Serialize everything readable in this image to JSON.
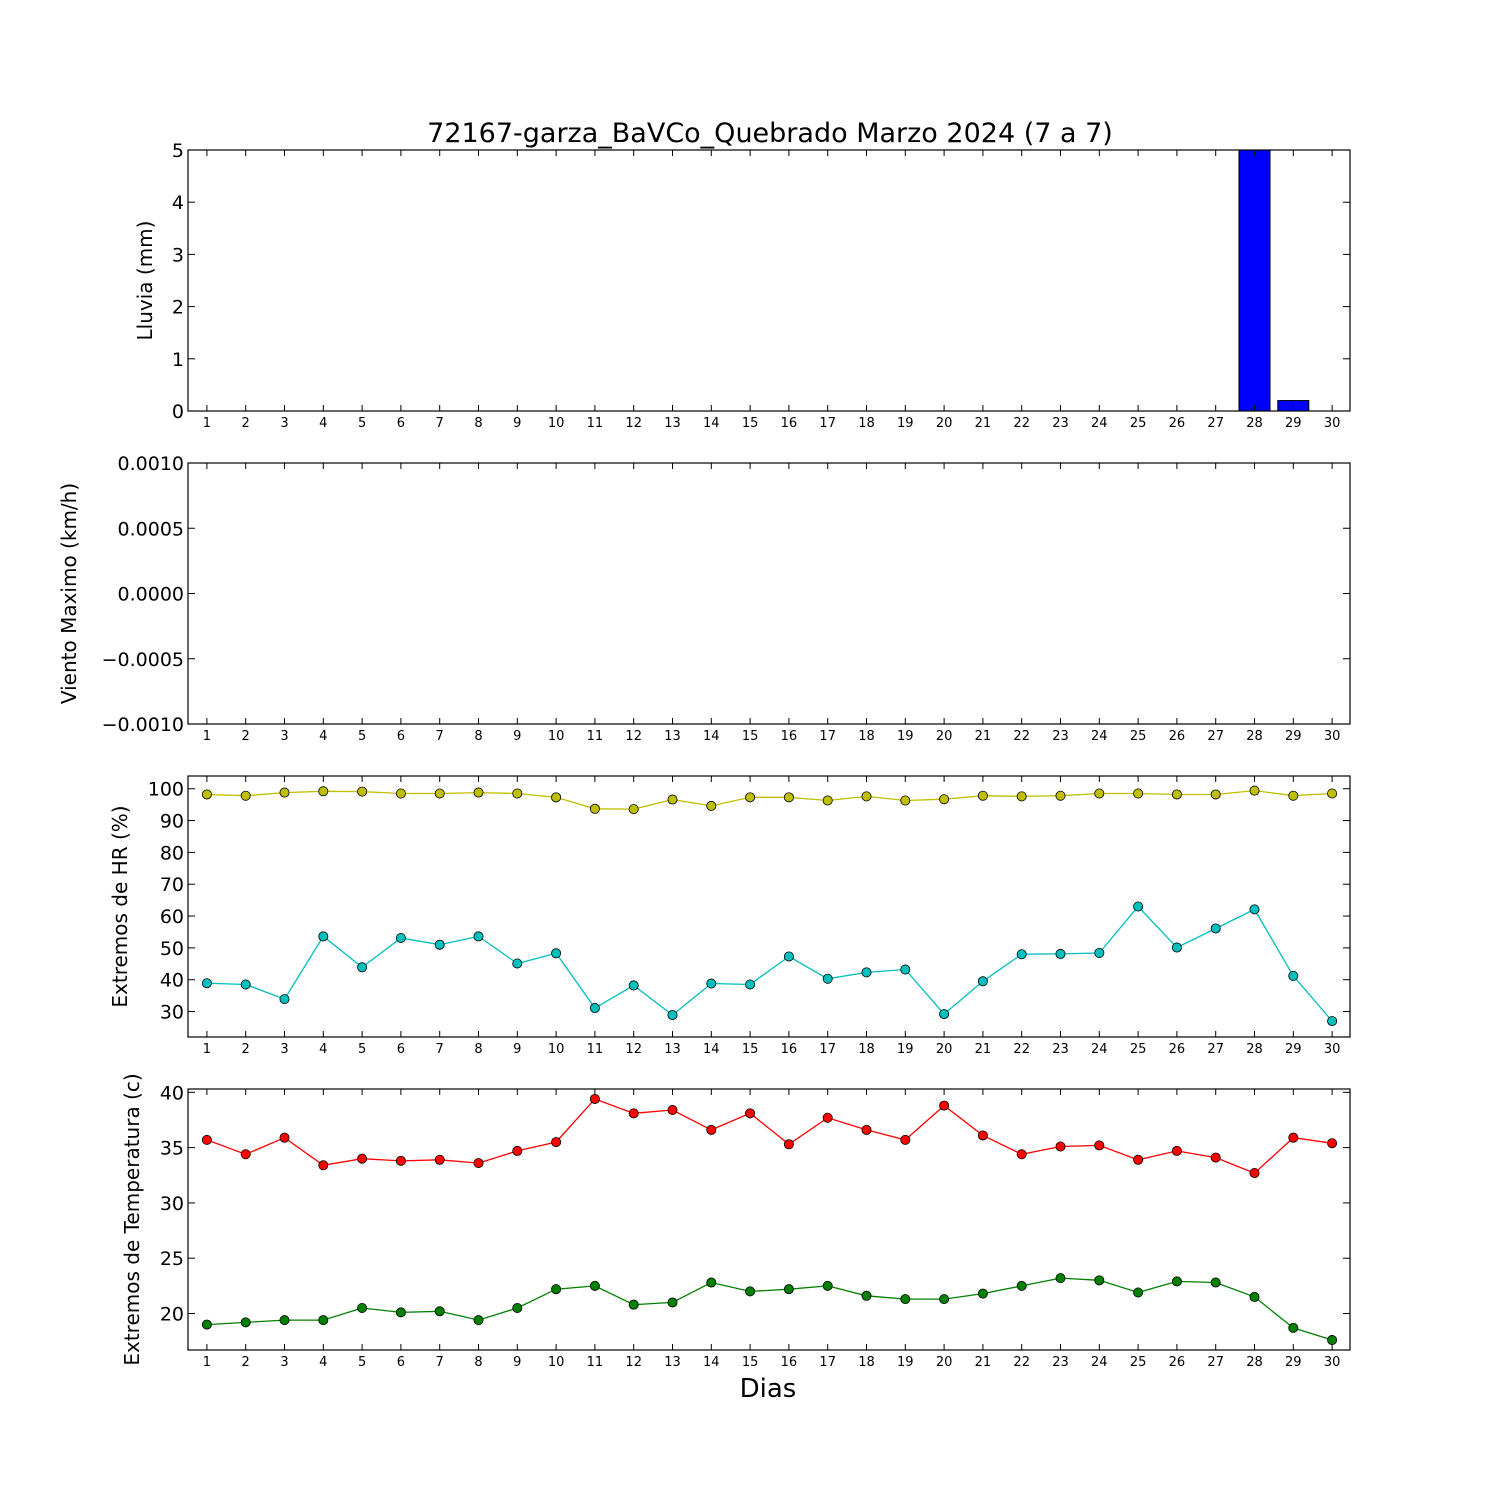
{
  "figure": {
    "title": "72167-garza_BaVCo_Quebrado Marzo 2024  (7 a 7)",
    "xlabel": "Dias"
  },
  "chart_data": [
    {
      "type": "bar",
      "ylabel": "Lluvia (mm)",
      "ylim": [
        0,
        5
      ],
      "yticks": [
        "0",
        "1",
        "2",
        "3",
        "4",
        "5"
      ],
      "ytick_values": [
        0,
        1,
        2,
        3,
        4,
        5
      ],
      "categories": [
        "1",
        "2",
        "3",
        "4",
        "5",
        "6",
        "7",
        "8",
        "9",
        "10",
        "11",
        "12",
        "13",
        "14",
        "15",
        "16",
        "17",
        "18",
        "19",
        "20",
        "21",
        "22",
        "23",
        "24",
        "25",
        "26",
        "27",
        "28",
        "29",
        "30"
      ],
      "values": [
        0,
        0,
        0,
        0,
        0,
        0,
        0,
        0,
        0,
        0,
        0,
        0,
        0,
        0,
        0,
        0,
        0,
        0,
        0,
        0,
        0,
        0,
        0,
        0,
        0,
        0,
        0,
        5.2,
        0.2,
        0
      ],
      "color": "#0000ff"
    },
    {
      "type": "line",
      "ylabel": "Viento Maximo (km/h)",
      "ylim": [
        -0.001,
        0.001
      ],
      "yticks": [
        "−0.0010",
        "−0.0005",
        "0.0000",
        "0.0005",
        "0.0010"
      ],
      "ytick_values": [
        -0.001,
        -0.0005,
        0,
        0.0005,
        0.001
      ],
      "categories": [
        "1",
        "2",
        "3",
        "4",
        "5",
        "6",
        "7",
        "8",
        "9",
        "10",
        "11",
        "12",
        "13",
        "14",
        "15",
        "16",
        "17",
        "18",
        "19",
        "20",
        "21",
        "22",
        "23",
        "24",
        "25",
        "26",
        "27",
        "28",
        "29",
        "30"
      ],
      "series": []
    },
    {
      "type": "line",
      "ylabel": "Extremos de HR (%)",
      "ylim": [
        22,
        104
      ],
      "yticks": [
        "30",
        "40",
        "50",
        "60",
        "70",
        "80",
        "90",
        "100"
      ],
      "ytick_values": [
        30,
        40,
        50,
        60,
        70,
        80,
        90,
        100
      ],
      "categories": [
        "1",
        "2",
        "3",
        "4",
        "5",
        "6",
        "7",
        "8",
        "9",
        "10",
        "11",
        "12",
        "13",
        "14",
        "15",
        "16",
        "17",
        "18",
        "19",
        "20",
        "21",
        "22",
        "23",
        "24",
        "25",
        "26",
        "27",
        "28",
        "29",
        "30"
      ],
      "series": [
        {
          "color": "#bfbf00",
          "values": [
            98.2,
            97.8,
            98.8,
            99.2,
            99.1,
            98.5,
            98.5,
            98.8,
            98.5,
            97.3,
            93.7,
            93.6,
            96.6,
            94.6,
            97.3,
            97.3,
            96.3,
            97.6,
            96.3,
            96.7,
            97.8,
            97.6,
            97.8,
            98.5,
            98.5,
            98.2,
            98.2,
            99.4,
            97.8,
            98.5
          ]
        },
        {
          "color": "#00bfbf",
          "values": [
            38.9,
            38.5,
            33.9,
            53.6,
            43.9,
            53.1,
            51.0,
            53.6,
            45.1,
            48.3,
            31.1,
            38.2,
            28.9,
            38.8,
            38.5,
            47.3,
            40.3,
            42.3,
            43.2,
            29.2,
            39.5,
            48.0,
            48.1,
            48.4,
            63.0,
            50.1,
            56.1,
            62.1,
            41.2,
            27.0
          ]
        }
      ]
    },
    {
      "type": "line",
      "ylabel": "Extremos de Temperatura (c)",
      "ylim": [
        16.7,
        40.3
      ],
      "yticks": [
        "20",
        "25",
        "30",
        "35",
        "40"
      ],
      "ytick_values": [
        20,
        25,
        30,
        35,
        40
      ],
      "categories": [
        "1",
        "2",
        "3",
        "4",
        "5",
        "6",
        "7",
        "8",
        "9",
        "10",
        "11",
        "12",
        "13",
        "14",
        "15",
        "16",
        "17",
        "18",
        "19",
        "20",
        "21",
        "22",
        "23",
        "24",
        "25",
        "26",
        "27",
        "28",
        "29",
        "30"
      ],
      "series": [
        {
          "color": "#ff0000",
          "values": [
            35.7,
            34.4,
            35.9,
            33.4,
            34.0,
            33.8,
            33.9,
            33.6,
            34.7,
            35.5,
            39.4,
            38.1,
            38.4,
            36.6,
            38.1,
            35.3,
            37.7,
            36.6,
            35.7,
            38.8,
            36.1,
            34.4,
            35.1,
            35.2,
            33.9,
            34.7,
            34.1,
            32.7,
            35.9,
            35.4
          ]
        },
        {
          "color": "#008000",
          "values": [
            19.0,
            19.2,
            19.4,
            19.4,
            20.5,
            20.1,
            20.2,
            19.4,
            20.5,
            22.2,
            22.5,
            20.8,
            21.0,
            22.8,
            22.0,
            22.2,
            22.5,
            21.6,
            21.3,
            21.3,
            21.8,
            22.5,
            23.2,
            23.0,
            21.9,
            22.9,
            22.8,
            21.5,
            18.7,
            17.6
          ]
        }
      ]
    }
  ]
}
